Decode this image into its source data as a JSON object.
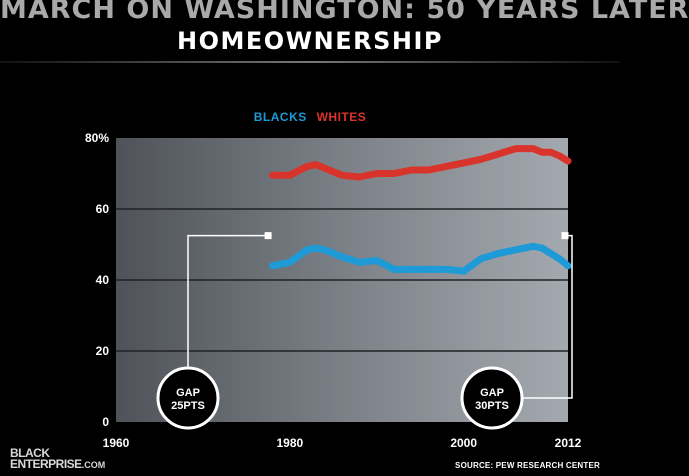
{
  "header": {
    "title": "MARCH ON WASHINGTON: 50 YEARS LATER",
    "subtitle": "HOMEOWNERSHIP"
  },
  "footer": {
    "logo_line1": "BLACK",
    "logo_line2": "ENTERPRISE",
    "logo_suffix": ".COM",
    "source": "SOURCE: PEW RESEARCH CENTER"
  },
  "annotations": {
    "gap_left_line1": "GAP",
    "gap_left_line2": "25PTS",
    "gap_right_line1": "GAP",
    "gap_right_line2": "30PTS"
  },
  "colors": {
    "blacks": "#1e9ad6",
    "whites": "#d9342b"
  },
  "chart_data": {
    "type": "line",
    "title": "HOMEOWNERSHIP",
    "xlim": [
      1960,
      2012
    ],
    "ylim": [
      0,
      80
    ],
    "x_ticks": [
      "1960",
      "1980",
      "2000",
      "2012"
    ],
    "x_tick_values": [
      1960,
      1980,
      2000,
      2012
    ],
    "y_ticks": [
      "80%",
      "60",
      "40",
      "20",
      "0"
    ],
    "y_tick_values": [
      80,
      60,
      40,
      20,
      0
    ],
    "grid": true,
    "legend_position": "top-center",
    "series": [
      {
        "name": "BLACKS",
        "color": "#1e9ad6",
        "x": [
          1978,
          1980,
          1982,
          1983,
          1984,
          1986,
          1988,
          1990,
          1992,
          1994,
          1996,
          1998,
          2000,
          2002,
          2004,
          2006,
          2008,
          2009,
          2010,
          2011,
          2012
        ],
        "y": [
          44,
          45,
          48.5,
          49,
          48.5,
          46.5,
          45,
          45.5,
          43,
          43,
          43,
          43,
          42.5,
          46,
          47.5,
          48.5,
          49.5,
          49,
          47.5,
          46,
          44
        ]
      },
      {
        "name": "WHITES",
        "color": "#d9342b",
        "x": [
          1978,
          1980,
          1982,
          1983,
          1984,
          1986,
          1988,
          1990,
          1992,
          1994,
          1996,
          1998,
          2000,
          2002,
          2004,
          2006,
          2008,
          2009,
          2010,
          2011,
          2012
        ],
        "y": [
          69.5,
          69.5,
          72,
          72.5,
          71.5,
          69.5,
          69,
          70,
          70,
          71,
          71,
          72,
          73,
          74,
          75.5,
          77,
          77,
          76,
          76,
          75,
          73.5
        ]
      }
    ]
  }
}
